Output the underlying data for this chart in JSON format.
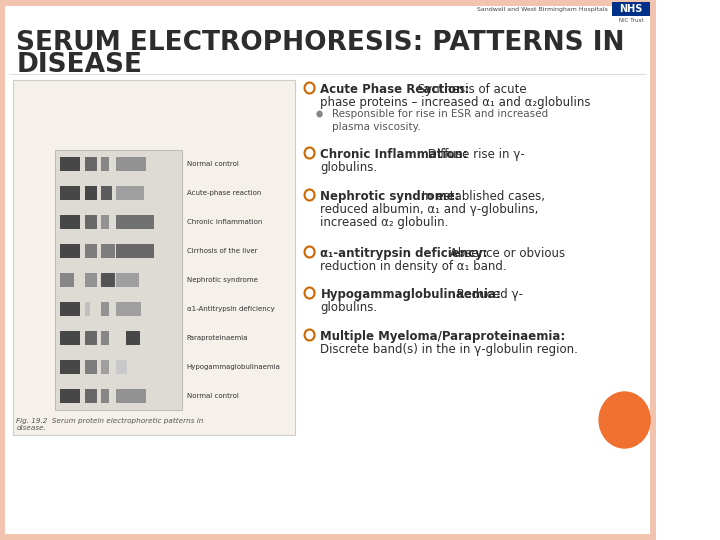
{
  "bg_color": "#FFFFFF",
  "border_color": "#F2C4B0",
  "title_line1": "SERUM ELECTROPHORESIS: PATTERNS IN",
  "title_line2": "DISEASE",
  "title_color": "#2D2D2D",
  "title_fontsize": 19,
  "nhs_label": "NHS",
  "nhs_sub": "Sandwell and West Birmingham Hospitals",
  "nhs_trust": "NIC Trust",
  "bullet_color_fill": "#FFFFFF",
  "bullet_color_edge": "#CC6600",
  "subbullet_color": "#888888",
  "text_color": "#2D2D2D",
  "orange_circle_color": "#F07030",
  "gel_bg": "#EAE6E0",
  "gel_border": "#BBBBBB",
  "img_bg": "#F5F0EA",
  "caption_text": "Fig. 19.2  Serum protein electrophoretic patterns in\ndisease.",
  "bullet1_bold": "Acute Phase Reaction:",
  "bullet1_rest": " Synthesis of acute phase proteins – increased α₁ and α₂globulins",
  "bullet1_sub1": "Responsible for rise in ESR and increased",
  "bullet1_sub2": "plasma viscosity.",
  "bullet2_bold": "Chronic Inflammation:",
  "bullet2_rest": " Diffuse rise in γ-globulins.",
  "bullet3_bold": "Nephrotic syndrome:",
  "bullet3_rest": " In established cases, reduced albumin, α₁ and γ-globulins, increased α₂ globulin.",
  "bullet4_bold": "α₁-antitrypsin deficiency:",
  "bullet4_rest": " Absence or obvious reduction in density of α₁ band.",
  "bullet5_bold": "Hypogammaglobulinaemia:",
  "bullet5_rest": " Reduced γ-globulins.",
  "bullet6_bold": "Multiple Myeloma/Paraproteinaemia:",
  "bullet6_rest": " Discrete band(s) in the in γ-globulin region.",
  "gel_labels": [
    "Normal control",
    "Acute-phase reaction",
    "Chronic inflammation",
    "Cirrhosis of the liver",
    "Nephrotic syndrome",
    "α1-Antitrypsin deficiency",
    "Paraproteinaemia",
    "Hypogammaglobulinaemia",
    "Normal control"
  ],
  "band_patterns": [
    [
      [
        0.04,
        0.16,
        0.88
      ],
      [
        0.24,
        0.09,
        0.72
      ],
      [
        0.36,
        0.07,
        0.58
      ],
      [
        0.48,
        0.24,
        0.52
      ]
    ],
    [
      [
        0.04,
        0.16,
        0.88
      ],
      [
        0.24,
        0.09,
        0.88
      ],
      [
        0.36,
        0.09,
        0.78
      ],
      [
        0.48,
        0.22,
        0.46
      ]
    ],
    [
      [
        0.04,
        0.16,
        0.88
      ],
      [
        0.24,
        0.09,
        0.72
      ],
      [
        0.36,
        0.07,
        0.52
      ],
      [
        0.48,
        0.3,
        0.68
      ]
    ],
    [
      [
        0.04,
        0.16,
        0.88
      ],
      [
        0.24,
        0.09,
        0.62
      ],
      [
        0.36,
        0.11,
        0.62
      ],
      [
        0.48,
        0.3,
        0.72
      ]
    ],
    [
      [
        0.04,
        0.11,
        0.58
      ],
      [
        0.24,
        0.09,
        0.52
      ],
      [
        0.36,
        0.11,
        0.82
      ],
      [
        0.48,
        0.18,
        0.46
      ]
    ],
    [
      [
        0.04,
        0.16,
        0.88
      ],
      [
        0.24,
        0.04,
        0.3
      ],
      [
        0.36,
        0.07,
        0.52
      ],
      [
        0.48,
        0.2,
        0.46
      ]
    ],
    [
      [
        0.04,
        0.16,
        0.88
      ],
      [
        0.24,
        0.09,
        0.72
      ],
      [
        0.36,
        0.07,
        0.58
      ],
      [
        0.56,
        0.11,
        0.88
      ]
    ],
    [
      [
        0.04,
        0.16,
        0.88
      ],
      [
        0.24,
        0.09,
        0.62
      ],
      [
        0.36,
        0.07,
        0.46
      ],
      [
        0.48,
        0.09,
        0.26
      ]
    ],
    [
      [
        0.04,
        0.16,
        0.88
      ],
      [
        0.24,
        0.09,
        0.72
      ],
      [
        0.36,
        0.07,
        0.58
      ],
      [
        0.48,
        0.24,
        0.52
      ]
    ]
  ]
}
